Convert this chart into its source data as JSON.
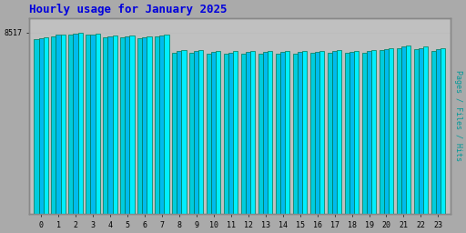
{
  "title": "Hourly usage for January 2025",
  "title_color": "#0000dd",
  "title_fontsize": 9,
  "hours": [
    0,
    1,
    2,
    3,
    4,
    5,
    6,
    7,
    8,
    9,
    10,
    11,
    12,
    13,
    14,
    15,
    16,
    17,
    18,
    19,
    20,
    21,
    22,
    23
  ],
  "pages": [
    8200,
    8350,
    8430,
    8410,
    8310,
    8290,
    8270,
    8320,
    7580,
    7560,
    7530,
    7510,
    7520,
    7530,
    7535,
    7540,
    7550,
    7560,
    7550,
    7570,
    7680,
    7800,
    7740,
    7660
  ],
  "files": [
    8260,
    8400,
    8460,
    8440,
    8350,
    8330,
    8300,
    8360,
    7650,
    7630,
    7600,
    7580,
    7590,
    7600,
    7605,
    7610,
    7620,
    7630,
    7620,
    7640,
    7750,
    7860,
    7800,
    7720
  ],
  "hits": [
    8310,
    8440,
    8490,
    8470,
    8390,
    8370,
    8350,
    8400,
    7700,
    7680,
    7650,
    7630,
    7640,
    7650,
    7655,
    7660,
    7670,
    7680,
    7670,
    7690,
    7800,
    7900,
    7850,
    7770
  ],
  "bar_width": 0.27,
  "bar_color_pages": "#00ccdd",
  "bar_color_files": "#00bbee",
  "bar_color_hits": "#00eeff",
  "bar_edge_color": "#007755",
  "bar_edge_width": 0.5,
  "ylabel": "Pages / Files / Hits",
  "ylabel_color": "#009999",
  "background_color": "#aaaaaa",
  "plot_bg_color": "#c0c0c0",
  "ylim_min": 0,
  "ylim_max": 9200,
  "ytick_value": 8517,
  "ytick_label": "8517",
  "font_family": "monospace",
  "border_color": "#888888",
  "fig_width": 5.12,
  "fig_height": 2.56,
  "dpi": 100
}
